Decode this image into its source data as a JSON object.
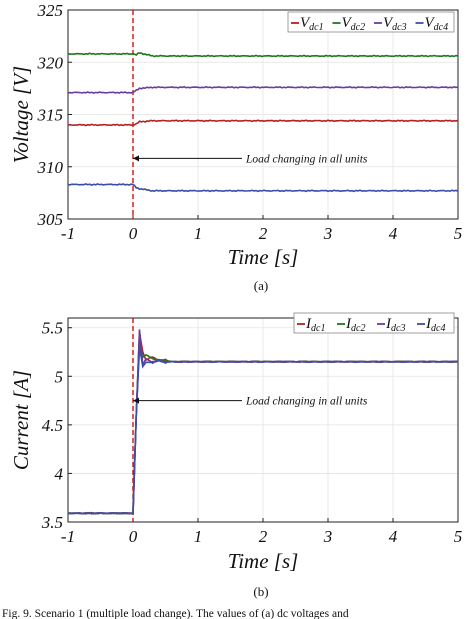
{
  "chart_data": [
    {
      "type": "line",
      "id": "a",
      "sublabel": "(a)",
      "xlabel": "Time [s]",
      "ylabel": "Voltage [V]",
      "xlim": [
        -1,
        5
      ],
      "ylim": [
        305,
        325
      ],
      "xticks": [
        "-1",
        "0",
        "1",
        "2",
        "3",
        "4",
        "5"
      ],
      "yticks": [
        "305",
        "310",
        "315",
        "320",
        "325"
      ],
      "grid": true,
      "legend_position": "top-right",
      "event_time": 0,
      "annotation": "Load changing in all units",
      "annotation_y": 310.8,
      "series": [
        {
          "name": "V",
          "sub": "dc1",
          "color": "#b22222",
          "x": [
            -1,
            0,
            0.05,
            0.1,
            0.3,
            1,
            5
          ],
          "y": [
            314.0,
            314.0,
            314.1,
            314.3,
            314.4,
            314.4,
            314.4
          ]
        },
        {
          "name": "V",
          "sub": "dc2",
          "color": "#1a7a1a",
          "x": [
            -1,
            0,
            0.05,
            0.1,
            0.3,
            1,
            5
          ],
          "y": [
            320.8,
            320.8,
            320.7,
            320.9,
            320.6,
            320.6,
            320.6
          ]
        },
        {
          "name": "V",
          "sub": "dc3",
          "color": "#6a3d9a",
          "x": [
            -1,
            0,
            0.05,
            0.1,
            0.3,
            1,
            5
          ],
          "y": [
            317.1,
            317.1,
            317.3,
            317.5,
            317.6,
            317.6,
            317.6
          ]
        },
        {
          "name": "V",
          "sub": "dc4",
          "color": "#3b4ea8",
          "x": [
            -1,
            0,
            0.05,
            0.1,
            0.3,
            1,
            5
          ],
          "y": [
            308.3,
            308.3,
            308.0,
            307.9,
            307.7,
            307.7,
            307.7
          ]
        }
      ]
    },
    {
      "type": "line",
      "id": "b",
      "sublabel": "(b)",
      "xlabel": "Time [s]",
      "ylabel": "Current [A]",
      "xlim": [
        -1,
        5
      ],
      "ylim": [
        3.5,
        5.6
      ],
      "xticks": [
        "-1",
        "0",
        "1",
        "2",
        "3",
        "4",
        "5"
      ],
      "yticks": [
        "3.5",
        "4",
        "4.5",
        "5",
        "5.5"
      ],
      "grid": true,
      "legend_position": "top-right",
      "event_time": 0,
      "annotation": "Load changing in all units",
      "annotation_y": 4.75,
      "series": [
        {
          "name": "I",
          "sub": "dc1",
          "color": "#b22222",
          "x": [
            -1,
            0,
            0.05,
            0.1,
            0.15,
            0.2,
            0.3,
            0.4,
            0.5,
            0.6,
            1,
            5
          ],
          "y": [
            3.59,
            3.59,
            4.6,
            5.45,
            5.25,
            5.17,
            5.2,
            5.16,
            5.17,
            5.15,
            5.15,
            5.15
          ]
        },
        {
          "name": "I",
          "sub": "dc2",
          "color": "#1a7a1a",
          "x": [
            -1,
            0,
            0.05,
            0.1,
            0.15,
            0.2,
            0.3,
            0.4,
            0.5,
            0.6,
            1,
            5
          ],
          "y": [
            3.59,
            3.59,
            4.6,
            5.35,
            5.2,
            5.22,
            5.18,
            5.17,
            5.16,
            5.15,
            5.15,
            5.15
          ]
        },
        {
          "name": "I",
          "sub": "dc3",
          "color": "#6a3d9a",
          "x": [
            -1,
            0,
            0.05,
            0.1,
            0.15,
            0.2,
            0.3,
            0.4,
            0.5,
            0.6,
            1,
            5
          ],
          "y": [
            3.59,
            3.59,
            4.6,
            5.48,
            5.12,
            5.18,
            5.14,
            5.16,
            5.15,
            5.15,
            5.15,
            5.15
          ]
        },
        {
          "name": "I",
          "sub": "dc4",
          "color": "#3b4ea8",
          "x": [
            -1,
            0,
            0.05,
            0.1,
            0.15,
            0.2,
            0.3,
            0.4,
            0.5,
            0.6,
            1,
            5
          ],
          "y": [
            3.59,
            3.59,
            4.6,
            5.3,
            5.1,
            5.14,
            5.15,
            5.16,
            5.14,
            5.15,
            5.15,
            5.15
          ]
        }
      ]
    }
  ],
  "caption": "Fig. 9.   Scenario 1 (multiple load change). The values of (a) dc voltages and"
}
